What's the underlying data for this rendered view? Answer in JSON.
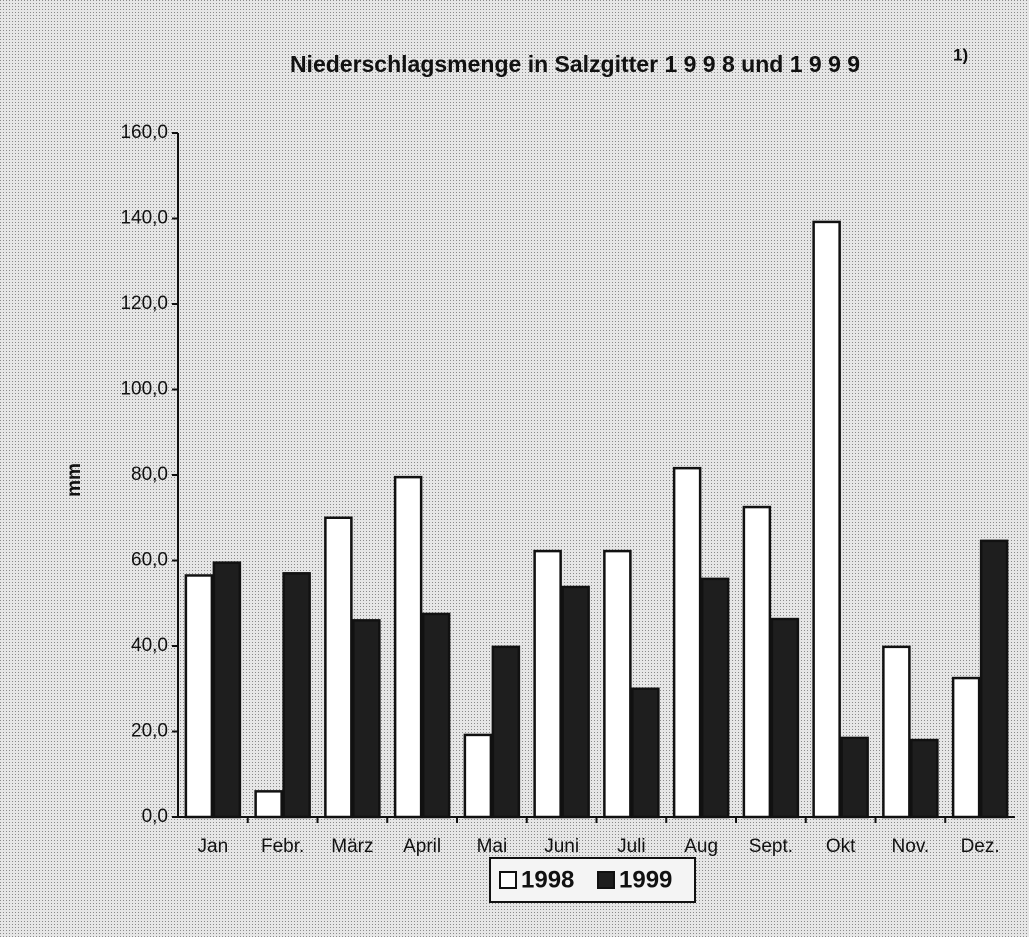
{
  "chart_data": {
    "type": "bar",
    "title": "Niederschlagsmenge in Salzgitter 1 9 9 8 und 1 9 9 9",
    "title_note": "1)",
    "y_label": "mm",
    "categories": [
      "Jan",
      "Febr.",
      "März",
      "April",
      "Mai",
      "Juni",
      "Juli",
      "Aug",
      "Sept.",
      "Okt",
      "Nov.",
      "Dez."
    ],
    "series": [
      {
        "name": "1998",
        "color": "#ffffff",
        "values": [
          56.5,
          6,
          70,
          79.5,
          19.2,
          62.2,
          62.2,
          81.6,
          72.5,
          139.2,
          39.8,
          32.5
        ]
      },
      {
        "name": "1999",
        "color": "#1e1e1e",
        "values": [
          59.5,
          57,
          46,
          47.5,
          39.8,
          53.8,
          30,
          55.7,
          46.3,
          18.5,
          18,
          64.6
        ]
      }
    ],
    "ylim": [
      0,
      160
    ],
    "yticks": [
      {
        "value": 0,
        "label": "0,0"
      },
      {
        "value": 20,
        "label": "20,0"
      },
      {
        "value": 40,
        "label": "40,0"
      },
      {
        "value": 60,
        "label": "60,0"
      },
      {
        "value": 80,
        "label": "80,0"
      },
      {
        "value": 100,
        "label": "100,0"
      },
      {
        "value": 120,
        "label": "120,0"
      },
      {
        "value": 140,
        "label": "140,0"
      },
      {
        "value": 160,
        "label": "160,0"
      }
    ],
    "grid": false,
    "legend": "bottom"
  }
}
